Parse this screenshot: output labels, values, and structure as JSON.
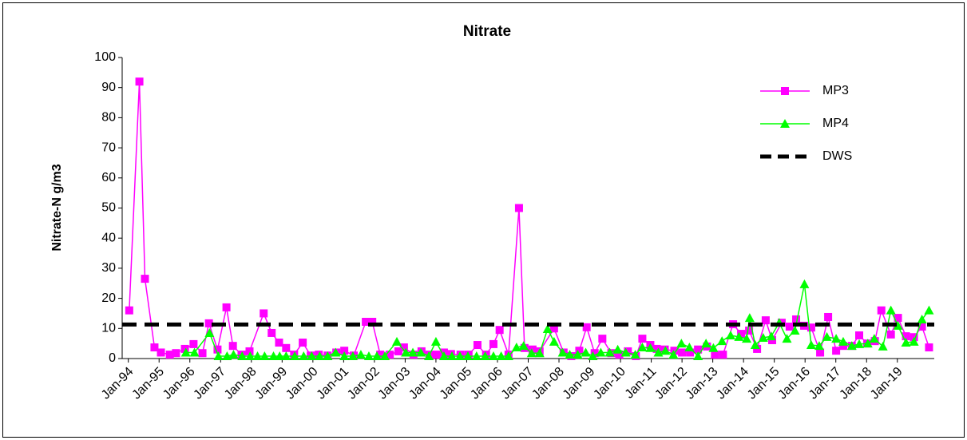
{
  "chart_data": {
    "type": "line",
    "title": "Nitrate",
    "ylabel": "Nitrate-N g/m3",
    "xlim": [
      1993.8,
      2020.2
    ],
    "ylim": [
      0,
      100
    ],
    "yticks": [
      0,
      10,
      20,
      30,
      40,
      50,
      60,
      70,
      80,
      90,
      100
    ],
    "xticks": [
      {
        "value": 1994,
        "label": "Jan-94"
      },
      {
        "value": 1995,
        "label": "Jan-95"
      },
      {
        "value": 1996,
        "label": "Jan-96"
      },
      {
        "value": 1997,
        "label": "Jan-97"
      },
      {
        "value": 1998,
        "label": "Jan-98"
      },
      {
        "value": 1999,
        "label": "Jan-99"
      },
      {
        "value": 2000,
        "label": "Jan-00"
      },
      {
        "value": 2001,
        "label": "Jan-01"
      },
      {
        "value": 2002,
        "label": "Jan-02"
      },
      {
        "value": 2003,
        "label": "Jan-03"
      },
      {
        "value": 2004,
        "label": "Jan-04"
      },
      {
        "value": 2005,
        "label": "Jan-05"
      },
      {
        "value": 2006,
        "label": "Jan-06"
      },
      {
        "value": 2007,
        "label": "Jan-07"
      },
      {
        "value": 2008,
        "label": "Jan-08"
      },
      {
        "value": 2009,
        "label": "Jan-09"
      },
      {
        "value": 2010,
        "label": "Jan-10"
      },
      {
        "value": 2011,
        "label": "Jan-11"
      },
      {
        "value": 2012,
        "label": "Jan-12"
      },
      {
        "value": 2013,
        "label": "Jan-13"
      },
      {
        "value": 2014,
        "label": "Jan-14"
      },
      {
        "value": 2015,
        "label": "Jan-15"
      },
      {
        "value": 2016,
        "label": "Jan-16"
      },
      {
        "value": 2017,
        "label": "Jan-17"
      },
      {
        "value": 2018,
        "label": "Jan-18"
      },
      {
        "value": 2019,
        "label": "Jan-19"
      }
    ],
    "legend": "upper right",
    "series": [
      {
        "name": "MP3",
        "color": "#ff00ff",
        "marker": "square",
        "x": [
          1994.03,
          1994.36,
          1994.54,
          1994.85,
          1995.06,
          1995.35,
          1995.55,
          1995.84,
          1996.12,
          1996.41,
          1996.62,
          1996.9,
          1997.19,
          1997.4,
          1997.68,
          1997.94,
          1998.4,
          1998.66,
          1998.9,
          1999.13,
          1999.39,
          1999.67,
          1999.93,
          2000.19,
          2000.48,
          2000.76,
          2001.02,
          2001.33,
          2001.72,
          2001.93,
          2002.19,
          2002.5,
          2002.78,
          2002.96,
          2003.27,
          2003.53,
          2003.79,
          2004.03,
          2004.26,
          2004.49,
          2004.8,
          2005.06,
          2005.35,
          2005.63,
          2005.87,
          2006.07,
          2006.36,
          2006.7,
          2006.88,
          2007.14,
          2007.37,
          2007.84,
          2008.15,
          2008.4,
          2008.66,
          2008.9,
          2009.16,
          2009.41,
          2009.7,
          2009.96,
          2010.24,
          2010.5,
          2010.71,
          2010.97,
          2011.18,
          2011.44,
          2011.75,
          2012.0,
          2012.26,
          2012.52,
          2012.81,
          2013.07,
          2013.33,
          2013.66,
          2013.92,
          2014.18,
          2014.44,
          2014.72,
          2014.93,
          2015.24,
          2015.5,
          2015.71,
          2015.97,
          2016.2,
          2016.49,
          2016.75,
          2017.01,
          2017.24,
          2017.52,
          2017.76,
          2018.02,
          2018.27,
          2018.48,
          2018.79,
          2019.02,
          2019.28,
          2019.54,
          2019.8,
          2020.03
        ],
        "values": [
          16,
          92,
          26.5,
          3.7,
          2,
          1.3,
          1.8,
          3.2,
          4.8,
          1.8,
          11.7,
          3,
          17,
          4.2,
          1.3,
          2.4,
          15,
          8.5,
          5.3,
          3.5,
          1.3,
          5.3,
          1,
          1.3,
          1,
          2,
          2.6,
          1,
          12.2,
          12.2,
          1.3,
          1.3,
          2.4,
          3.7,
          1.3,
          2.4,
          1.3,
          1.3,
          2,
          1.5,
          1.3,
          1.3,
          4.5,
          1.3,
          4.8,
          9.5,
          1.3,
          50,
          3.5,
          3,
          2.4,
          10,
          2,
          0.8,
          2.6,
          10.4,
          1.8,
          6.6,
          1.8,
          1.3,
          2.4,
          0.8,
          6.6,
          4.5,
          3.2,
          3,
          2.6,
          2,
          2,
          3,
          4,
          1.3,
          1.3,
          11.4,
          8.2,
          9.3,
          3.2,
          12.7,
          6.1,
          11.9,
          10.6,
          13,
          10.9,
          10.3,
          2,
          13.8,
          2.6,
          4.2,
          4.2,
          7.7,
          5,
          5.8,
          16,
          8,
          13.5,
          7.4,
          7.1,
          10.6,
          3.7
        ]
      },
      {
        "name": "MP4",
        "color": "#00ff00",
        "marker": "triangle",
        "x": [
          1995.87,
          1996.15,
          1996.64,
          1996.93,
          1997.21,
          1997.42,
          1997.7,
          1997.96,
          1998.2,
          1998.43,
          1998.72,
          1998.92,
          1999.13,
          1999.41,
          1999.7,
          1999.96,
          2000.22,
          2000.48,
          2000.74,
          2001.02,
          2001.3,
          2001.56,
          2001.82,
          2002.08,
          2002.34,
          2002.73,
          2003.02,
          2003.25,
          2003.51,
          2003.77,
          2004.0,
          2004.26,
          2004.52,
          2004.78,
          2005.04,
          2005.32,
          2005.6,
          2005.87,
          2006.12,
          2006.36,
          2006.62,
          2006.85,
          2007.11,
          2007.37,
          2007.63,
          2007.84,
          2008.12,
          2008.35,
          2008.61,
          2008.87,
          2009.1,
          2009.36,
          2009.65,
          2009.91,
          2010.17,
          2010.48,
          2010.71,
          2010.97,
          2011.23,
          2011.46,
          2011.72,
          2011.98,
          2012.24,
          2012.52,
          2012.78,
          2013.02,
          2013.3,
          2013.58,
          2013.85,
          2014.1,
          2014.2,
          2014.38,
          2014.64,
          2014.9,
          2015.16,
          2015.41,
          2015.67,
          2015.98,
          2016.2,
          2016.46,
          2016.71,
          2017.01,
          2017.24,
          2017.52,
          2017.76,
          2018.04,
          2018.25,
          2018.53,
          2018.79,
          2019.02,
          2019.28,
          2019.54,
          2019.8,
          2020.03
        ],
        "values": [
          2,
          2,
          8.5,
          0.8,
          0.8,
          1.3,
          0.8,
          0.8,
          0.8,
          0.8,
          0.8,
          0.8,
          0.8,
          0.8,
          0.8,
          0.8,
          0.8,
          0.8,
          2,
          0.8,
          0.8,
          1.3,
          0.8,
          0.8,
          0.8,
          5.6,
          2,
          2,
          2,
          0.8,
          5.6,
          0.8,
          0.8,
          0.8,
          0.8,
          0.8,
          0.8,
          0.8,
          0.8,
          0.8,
          3.7,
          4.2,
          1.8,
          1.8,
          9.8,
          5.6,
          2,
          1.3,
          1.3,
          2,
          0.8,
          2,
          2,
          3,
          2,
          1.3,
          3.7,
          3.5,
          2,
          2.6,
          1.3,
          5,
          3.7,
          0.8,
          5,
          3.5,
          5.8,
          7.7,
          7.2,
          6.6,
          13.5,
          4.5,
          6.9,
          7.4,
          11.9,
          6.6,
          9.3,
          24.7,
          4.5,
          4.2,
          7.2,
          6.6,
          5.6,
          4.2,
          4.8,
          5,
          6.6,
          4,
          16,
          10.9,
          5.3,
          5.6,
          13,
          16
        ]
      },
      {
        "name": "DWS",
        "color": "#000000",
        "marker": "none",
        "dashed": true,
        "x": [
          1993.8,
          2020.2
        ],
        "values": [
          11.3,
          11.3
        ]
      }
    ]
  }
}
